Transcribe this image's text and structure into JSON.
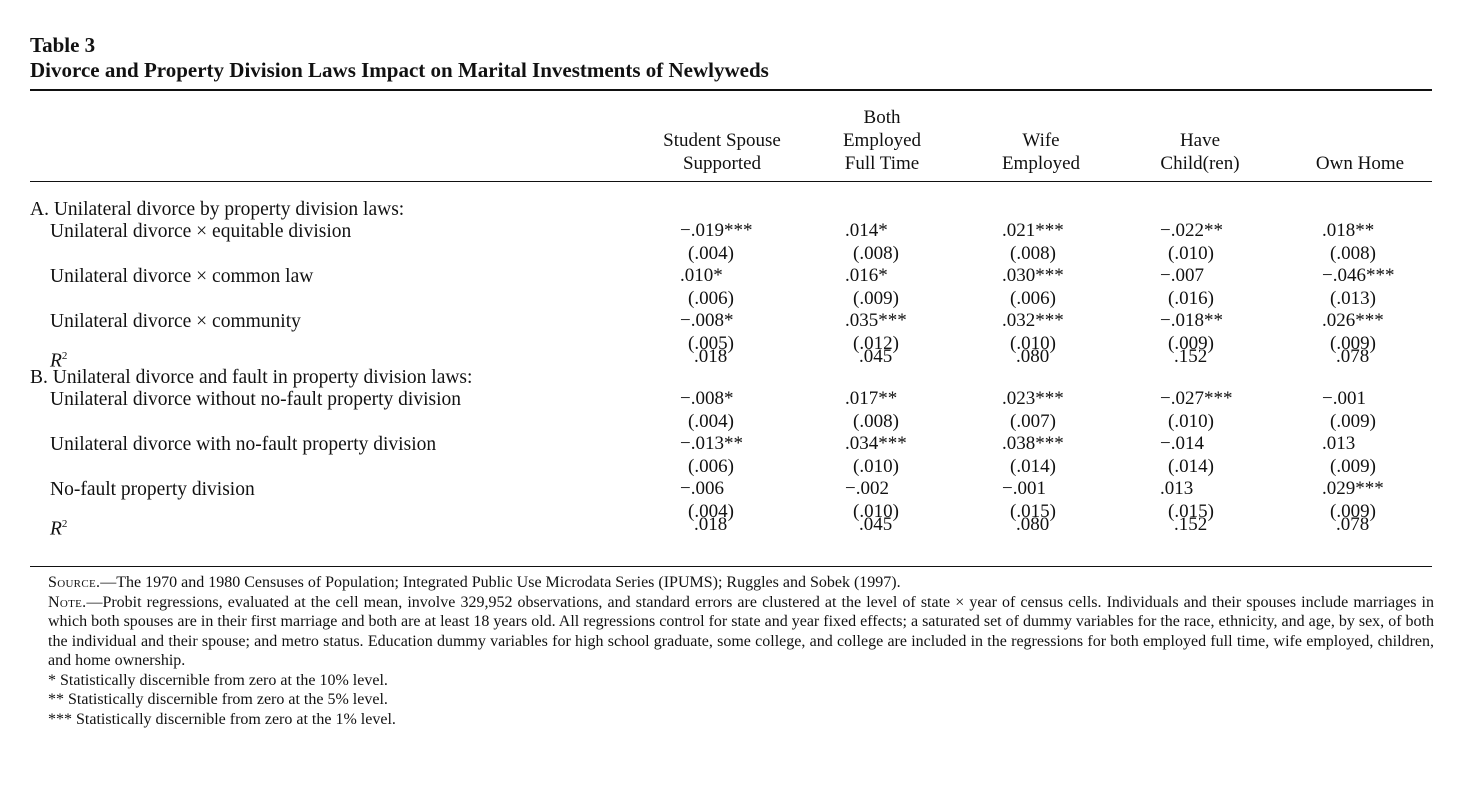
{
  "table": {
    "number": "Table 3",
    "title": "Divorce and Property Division Laws Impact on Marital Investments of Newlyweds",
    "columns": [
      {
        "lines": [
          "Student Spouse",
          "Supported"
        ]
      },
      {
        "lines": [
          "Both",
          "Employed",
          "Full Time"
        ]
      },
      {
        "lines": [
          "Wife",
          "Employed"
        ]
      },
      {
        "lines": [
          "Have",
          "Child(ren)"
        ]
      },
      {
        "lines": [
          "Own Home"
        ]
      }
    ],
    "panel_a": {
      "heading": "A. Unilateral divorce by property division laws:",
      "rows": [
        {
          "label": "Unilateral divorce × equitable division",
          "coef": [
            "−.019***",
            ".014*",
            ".021***",
            "−.022**",
            ".018**"
          ],
          "se": [
            "(.004)",
            "(.008)",
            "(.008)",
            "(.010)",
            "(.008)"
          ]
        },
        {
          "label": "Unilateral divorce × common law",
          "coef": [
            ".010*",
            ".016*",
            ".030***",
            "−.007",
            "−.046***"
          ],
          "se": [
            "(.006)",
            "(.009)",
            "(.006)",
            "(.016)",
            "(.013)"
          ]
        },
        {
          "label": "Unilateral divorce × community",
          "coef": [
            "−.008*",
            ".035***",
            ".032***",
            "−.018**",
            ".026***"
          ],
          "se": [
            "(.005)",
            "(.012)",
            "(.010)",
            "(.009)",
            "(.009)"
          ]
        }
      ],
      "r2_label": "R",
      "r2": [
        ".018",
        ".045",
        ".080",
        ".152",
        ".078"
      ]
    },
    "panel_b": {
      "heading": "B. Unilateral divorce and fault in property division laws:",
      "rows": [
        {
          "label": "Unilateral divorce without no-fault property division",
          "coef": [
            "−.008*",
            ".017**",
            ".023***",
            "−.027***",
            "−.001"
          ],
          "se": [
            "(.004)",
            "(.008)",
            "(.007)",
            "(.010)",
            "(.009)"
          ]
        },
        {
          "label": "Unilateral divorce with no-fault property division",
          "coef": [
            "−.013**",
            ".034***",
            ".038***",
            "−.014",
            ".013"
          ],
          "se": [
            "(.006)",
            "(.010)",
            "(.014)",
            "(.014)",
            "(.009)"
          ]
        },
        {
          "label": "No-fault property division",
          "coef": [
            "−.006",
            "−.002",
            "−.001",
            ".013",
            ".029***"
          ],
          "se": [
            "(.004)",
            "(.010)",
            "(.015)",
            "(.015)",
            "(.009)"
          ]
        }
      ],
      "r2_label": "R",
      "r2": [
        ".018",
        ".045",
        ".080",
        ".152",
        ".078"
      ]
    },
    "r2_superscript": "2"
  },
  "notes": {
    "source_label": "Source.",
    "source_text": "—The 1970 and 1980 Censuses of Population; Integrated Public Use Microdata Series (IPUMS); Ruggles and Sobek (1997).",
    "note_label": "Note.",
    "note_text": "—Probit regressions, evaluated at the cell mean, involve 329,952 observations, and standard errors are clustered at the level of state × year of census cells. Individuals and their spouses include marriages in which both spouses are in their first marriage and both are at least 18 years old. All regressions control for state and year fixed effects; a saturated set of dummy variables for the race, ethnicity, and age, by sex, of both the individual and their spouse; and metro status. Education dummy variables for high school graduate, some college, and college are included in the regressions for both employed full time, wife employed, children, and home ownership.",
    "sig": [
      "* Statistically discernible from zero at the 10% level.",
      "** Statistically discernible from zero at the 5% level.",
      "*** Statistically discernible from zero at the 1% level."
    ]
  }
}
